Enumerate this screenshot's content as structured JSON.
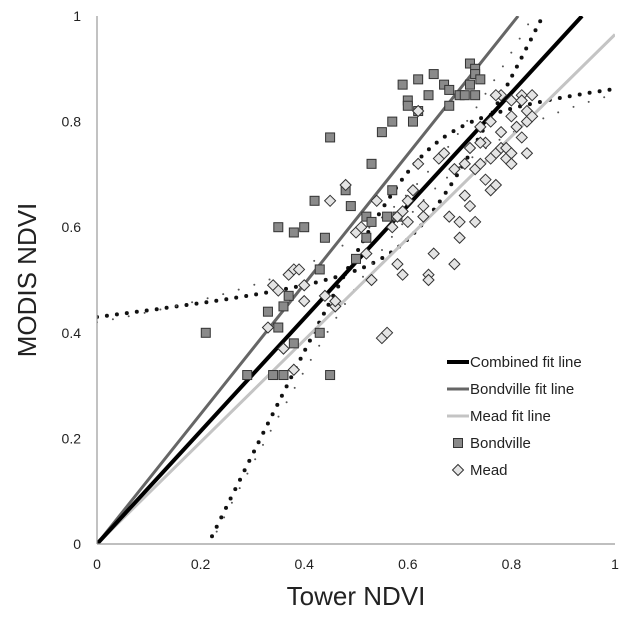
{
  "chart_data": {
    "type": "scatter",
    "title": "",
    "xlabel": "Tower NDVI",
    "ylabel": "MODIS NDVI",
    "xlim": [
      0,
      1
    ],
    "ylim": [
      0,
      1
    ],
    "x_ticks": [
      "0",
      "0.2",
      "0.4",
      "0.6",
      "0.8",
      "1"
    ],
    "y_ticks": [
      "0",
      "0.2",
      "0.4",
      "0.6",
      "0.8",
      "1"
    ],
    "grid": false,
    "legend_position": "bottom-right",
    "colors": {
      "combined": "#000000",
      "bondville_line": "#666666",
      "mead_line": "#c4c4c4",
      "bondville_marker": "#8a8a8a",
      "mead_marker": "#e4e4e4",
      "band": "#111111"
    },
    "lines": [
      {
        "name": "Combined fit line",
        "slope": 1.068
      },
      {
        "name": "Bondville fit line",
        "slope": 1.23
      },
      {
        "name": "Mead fit line",
        "slope": 0.965
      }
    ],
    "series": [
      {
        "name": "Bondville",
        "marker": "square",
        "points": [
          [
            0.21,
            0.4
          ],
          [
            0.29,
            0.32
          ],
          [
            0.34,
            0.32
          ],
          [
            0.36,
            0.32
          ],
          [
            0.33,
            0.44
          ],
          [
            0.35,
            0.41
          ],
          [
            0.36,
            0.45
          ],
          [
            0.37,
            0.47
          ],
          [
            0.38,
            0.38
          ],
          [
            0.35,
            0.6
          ],
          [
            0.38,
            0.59
          ],
          [
            0.4,
            0.6
          ],
          [
            0.42,
            0.65
          ],
          [
            0.43,
            0.52
          ],
          [
            0.43,
            0.4
          ],
          [
            0.44,
            0.58
          ],
          [
            0.45,
            0.77
          ],
          [
            0.45,
            0.32
          ],
          [
            0.48,
            0.67
          ],
          [
            0.49,
            0.64
          ],
          [
            0.5,
            0.54
          ],
          [
            0.52,
            0.58
          ],
          [
            0.52,
            0.62
          ],
          [
            0.53,
            0.61
          ],
          [
            0.53,
            0.72
          ],
          [
            0.55,
            0.78
          ],
          [
            0.56,
            0.62
          ],
          [
            0.57,
            0.8
          ],
          [
            0.57,
            0.67
          ],
          [
            0.58,
            0.62
          ],
          [
            0.59,
            0.87
          ],
          [
            0.6,
            0.84
          ],
          [
            0.6,
            0.83
          ],
          [
            0.61,
            0.8
          ],
          [
            0.62,
            0.88
          ],
          [
            0.62,
            0.82
          ],
          [
            0.64,
            0.85
          ],
          [
            0.65,
            0.89
          ],
          [
            0.67,
            0.87
          ],
          [
            0.68,
            0.83
          ],
          [
            0.68,
            0.86
          ],
          [
            0.7,
            0.85
          ],
          [
            0.71,
            0.85
          ],
          [
            0.72,
            0.87
          ],
          [
            0.72,
            0.91
          ],
          [
            0.73,
            0.9
          ],
          [
            0.73,
            0.89
          ],
          [
            0.73,
            0.85
          ],
          [
            0.74,
            0.88
          ]
        ]
      },
      {
        "name": "Mead",
        "marker": "diamond",
        "points": [
          [
            0.33,
            0.41
          ],
          [
            0.34,
            0.49
          ],
          [
            0.35,
            0.48
          ],
          [
            0.36,
            0.37
          ],
          [
            0.37,
            0.51
          ],
          [
            0.38,
            0.52
          ],
          [
            0.38,
            0.33
          ],
          [
            0.39,
            0.52
          ],
          [
            0.4,
            0.49
          ],
          [
            0.4,
            0.46
          ],
          [
            0.44,
            0.47
          ],
          [
            0.45,
            0.65
          ],
          [
            0.46,
            0.45
          ],
          [
            0.46,
            0.46
          ],
          [
            0.48,
            0.68
          ],
          [
            0.5,
            0.59
          ],
          [
            0.51,
            0.6
          ],
          [
            0.52,
            0.55
          ],
          [
            0.53,
            0.5
          ],
          [
            0.54,
            0.65
          ],
          [
            0.55,
            0.39
          ],
          [
            0.56,
            0.4
          ],
          [
            0.57,
            0.6
          ],
          [
            0.58,
            0.53
          ],
          [
            0.58,
            0.62
          ],
          [
            0.59,
            0.51
          ],
          [
            0.59,
            0.63
          ],
          [
            0.6,
            0.61
          ],
          [
            0.6,
            0.65
          ],
          [
            0.61,
            0.67
          ],
          [
            0.62,
            0.72
          ],
          [
            0.62,
            0.82
          ],
          [
            0.63,
            0.62
          ],
          [
            0.63,
            0.64
          ],
          [
            0.64,
            0.51
          ],
          [
            0.64,
            0.5
          ],
          [
            0.65,
            0.55
          ],
          [
            0.66,
            0.73
          ],
          [
            0.67,
            0.74
          ],
          [
            0.68,
            0.62
          ],
          [
            0.69,
            0.71
          ],
          [
            0.69,
            0.53
          ],
          [
            0.7,
            0.61
          ],
          [
            0.7,
            0.58
          ],
          [
            0.71,
            0.72
          ],
          [
            0.71,
            0.66
          ],
          [
            0.72,
            0.75
          ],
          [
            0.72,
            0.64
          ],
          [
            0.73,
            0.61
          ],
          [
            0.73,
            0.71
          ],
          [
            0.74,
            0.79
          ],
          [
            0.74,
            0.72
          ],
          [
            0.75,
            0.76
          ],
          [
            0.75,
            0.69
          ],
          [
            0.76,
            0.8
          ],
          [
            0.76,
            0.67
          ],
          [
            0.77,
            0.74
          ],
          [
            0.77,
            0.68
          ],
          [
            0.78,
            0.78
          ],
          [
            0.78,
            0.75
          ],
          [
            0.78,
            0.85
          ],
          [
            0.79,
            0.75
          ],
          [
            0.79,
            0.73
          ],
          [
            0.8,
            0.84
          ],
          [
            0.8,
            0.81
          ],
          [
            0.8,
            0.74
          ],
          [
            0.8,
            0.72
          ],
          [
            0.81,
            0.79
          ],
          [
            0.82,
            0.85
          ],
          [
            0.82,
            0.84
          ],
          [
            0.82,
            0.77
          ],
          [
            0.83,
            0.8
          ],
          [
            0.83,
            0.82
          ],
          [
            0.84,
            0.81
          ],
          [
            0.84,
            0.85
          ],
          [
            0.83,
            0.74
          ],
          [
            0.77,
            0.85
          ],
          [
            0.74,
            0.76
          ],
          [
            0.76,
            0.73
          ]
        ]
      }
    ]
  }
}
